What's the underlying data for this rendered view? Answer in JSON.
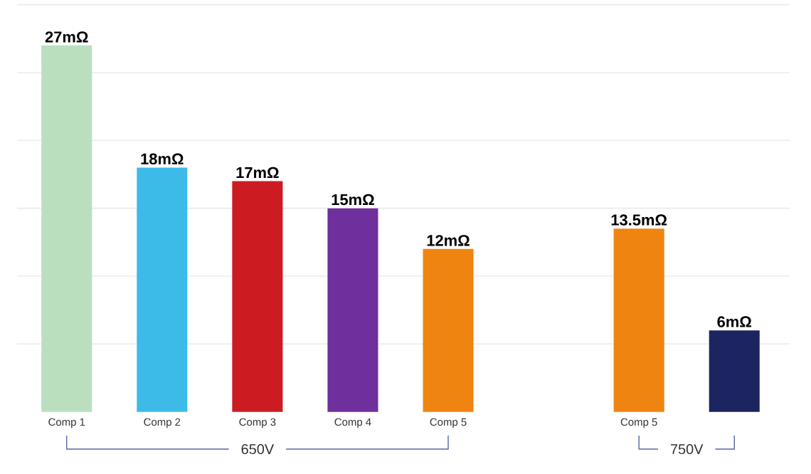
{
  "chart_data": {
    "type": "bar",
    "categories": [
      "Comp 1",
      "Comp 2",
      "Comp 3",
      "Comp 4",
      "Comp 5",
      null,
      "Comp 5",
      null
    ],
    "values": [
      27,
      18,
      17,
      15,
      12,
      null,
      13.5,
      6
    ],
    "colors": [
      "#b9dfbf",
      "#3dbbe8",
      "#cc1c22",
      "#6f2f9c",
      "#ef8410",
      null,
      "#ef8410",
      "#1d2560"
    ],
    "value_labels": [
      "27mΩ",
      "18mΩ",
      "17mΩ",
      "15mΩ",
      "12mΩ",
      null,
      "13.5mΩ",
      "6mΩ"
    ],
    "ylim": [
      0,
      30
    ],
    "yticks": [
      {
        "value": 5,
        "label": null
      },
      {
        "value": 10,
        "label": null
      },
      {
        "value": 15,
        "label": null
      },
      {
        "value": 20,
        "label": null
      },
      {
        "value": 25,
        "label": null
      },
      {
        "value": 30,
        "label": null
      }
    ],
    "grid": "y",
    "tick_labels": "x",
    "annotations": [
      "650V",
      "750V"
    ]
  }
}
